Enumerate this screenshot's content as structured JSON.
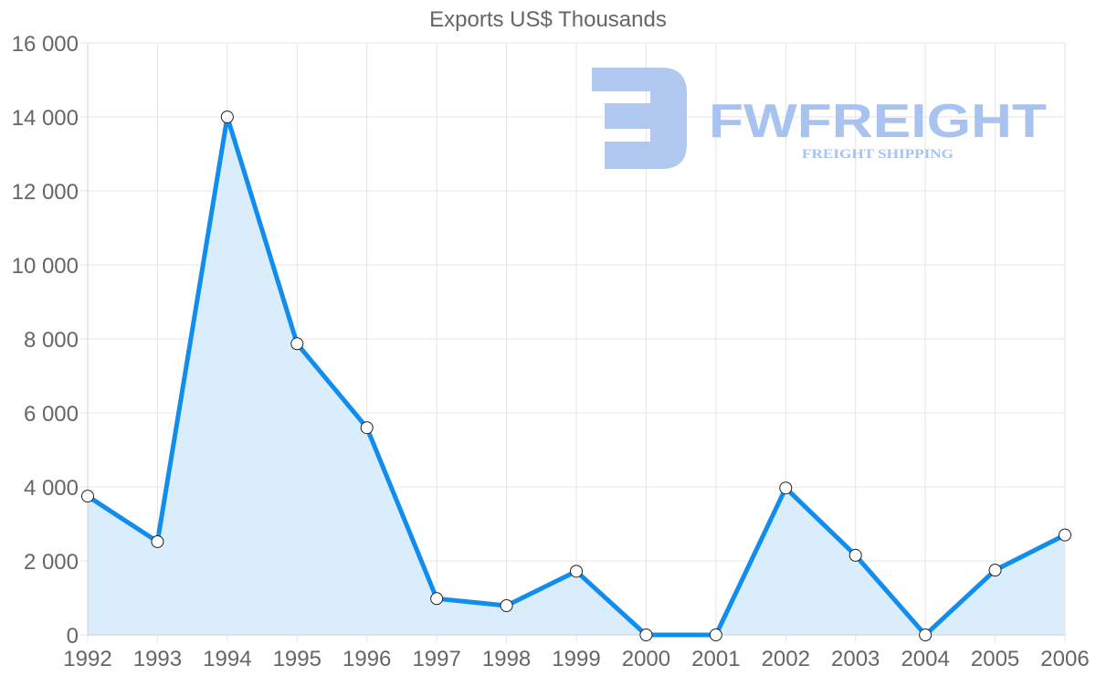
{
  "chart_data": {
    "type": "line",
    "title": "Exports US$ Thousands",
    "xlabel": "",
    "ylabel": "",
    "categories": [
      "1992",
      "1993",
      "1994",
      "1995",
      "1996",
      "1997",
      "1998",
      "1999",
      "2000",
      "2001",
      "2002",
      "2003",
      "2004",
      "2005",
      "2006"
    ],
    "series": [
      {
        "name": "Exports US$ Thousands",
        "values": [
          3750,
          2520,
          14000,
          7870,
          5600,
          980,
          790,
          1720,
          0,
          0,
          3970,
          2150,
          0,
          1750,
          2700
        ],
        "color": "#118dee",
        "fill": "#d7ecfc",
        "area": true
      }
    ],
    "ylim": [
      0,
      16000
    ],
    "yticks": [
      0,
      2000,
      4000,
      6000,
      8000,
      10000,
      12000,
      14000,
      16000
    ],
    "ytick_labels": [
      "0",
      "2 000",
      "4 000",
      "6 000",
      "8 000",
      "10 000",
      "12 000",
      "14 000",
      "16 000"
    ],
    "grid": true,
    "legend": "none"
  },
  "watermark": {
    "brand": "FWFREIGHT",
    "tagline": "FREIGHT SHIPPING",
    "color": "#a9c3f0"
  }
}
